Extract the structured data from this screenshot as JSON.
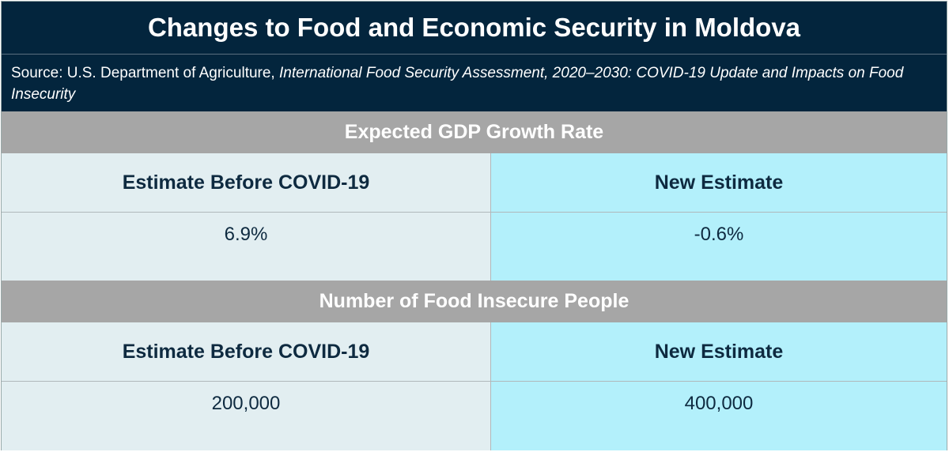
{
  "title": "Changes to Food and Economic Security in Moldova",
  "source": {
    "prefix": "Source: U.S. Department of Agriculture, ",
    "italic": "International Food Security Assessment, 2020–2030: COVID-19 Update and Impacts on Food Insecurity"
  },
  "sections": [
    {
      "heading": "Expected GDP Growth Rate",
      "col_left": "Estimate Before COVID-19",
      "col_right": "New Estimate",
      "value_left": "6.9%",
      "value_right": "-0.6%"
    },
    {
      "heading": "Number of Food Insecure People",
      "col_left": "Estimate Before COVID-19",
      "col_right": "New Estimate",
      "value_left": "200,000",
      "value_right": "400,000"
    }
  ]
}
